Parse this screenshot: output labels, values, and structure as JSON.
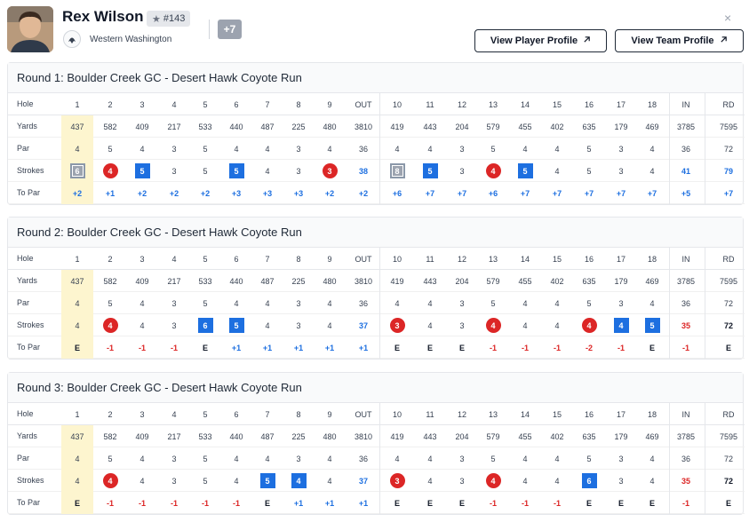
{
  "player": {
    "name": "Rex Wilson",
    "rank": "#143",
    "team": "Western Washington",
    "more": "+7"
  },
  "buttons": {
    "player_profile": "View Player Profile",
    "team_profile": "View Team Profile"
  },
  "close": "×",
  "row_labels": {
    "hole": "Hole",
    "yards": "Yards",
    "par": "Par",
    "strokes": "Strokes",
    "to_par": "To Par"
  },
  "columns": [
    "1",
    "2",
    "3",
    "4",
    "5",
    "6",
    "7",
    "8",
    "9",
    "OUT",
    "10",
    "11",
    "12",
    "13",
    "14",
    "15",
    "16",
    "17",
    "18",
    "IN",
    "RD"
  ],
  "rounds": [
    {
      "title": "Round 1: Boulder Creek GC - Desert Hawk Coyote Run",
      "yards": [
        "437",
        "582",
        "409",
        "217",
        "533",
        "440",
        "487",
        "225",
        "480",
        "3810",
        "419",
        "443",
        "204",
        "579",
        "455",
        "402",
        "635",
        "179",
        "469",
        "3785",
        "7595"
      ],
      "par": [
        "4",
        "5",
        "4",
        "3",
        "5",
        "4",
        "4",
        "3",
        "4",
        "36",
        "4",
        "4",
        "3",
        "5",
        "4",
        "4",
        "5",
        "3",
        "4",
        "36",
        "72"
      ],
      "strokes": [
        "6",
        "4",
        "5",
        "3",
        "5",
        "5",
        "4",
        "3",
        "3",
        "38",
        "8",
        "5",
        "3",
        "4",
        "5",
        "4",
        "5",
        "3",
        "4",
        "41",
        "79"
      ],
      "to_par": [
        "+2",
        "+1",
        "+2",
        "+2",
        "+2",
        "+3",
        "+3",
        "+3",
        "+2",
        "+2",
        "+6",
        "+7",
        "+7",
        "+6",
        "+7",
        "+7",
        "+7",
        "+7",
        "+7",
        "+5",
        "+7"
      ]
    },
    {
      "title": "Round 2: Boulder Creek GC - Desert Hawk Coyote Run",
      "yards": [
        "437",
        "582",
        "409",
        "217",
        "533",
        "440",
        "487",
        "225",
        "480",
        "3810",
        "419",
        "443",
        "204",
        "579",
        "455",
        "402",
        "635",
        "179",
        "469",
        "3785",
        "7595"
      ],
      "par": [
        "4",
        "5",
        "4",
        "3",
        "5",
        "4",
        "4",
        "3",
        "4",
        "36",
        "4",
        "4",
        "3",
        "5",
        "4",
        "4",
        "5",
        "3",
        "4",
        "36",
        "72"
      ],
      "strokes": [
        "4",
        "4",
        "4",
        "3",
        "6",
        "5",
        "4",
        "3",
        "4",
        "37",
        "3",
        "4",
        "3",
        "4",
        "4",
        "4",
        "4",
        "4",
        "5",
        "35",
        "72"
      ],
      "to_par": [
        "E",
        "-1",
        "-1",
        "-1",
        "E",
        "+1",
        "+1",
        "+1",
        "+1",
        "+1",
        "E",
        "E",
        "E",
        "-1",
        "-1",
        "-1",
        "-2",
        "-1",
        "E",
        "-1",
        "E"
      ]
    },
    {
      "title": "Round 3: Boulder Creek GC - Desert Hawk Coyote Run",
      "yards": [
        "437",
        "582",
        "409",
        "217",
        "533",
        "440",
        "487",
        "225",
        "480",
        "3810",
        "419",
        "443",
        "204",
        "579",
        "455",
        "402",
        "635",
        "179",
        "469",
        "3785",
        "7595"
      ],
      "par": [
        "4",
        "5",
        "4",
        "3",
        "5",
        "4",
        "4",
        "3",
        "4",
        "36",
        "4",
        "4",
        "3",
        "5",
        "4",
        "4",
        "5",
        "3",
        "4",
        "36",
        "72"
      ],
      "strokes": [
        "4",
        "4",
        "4",
        "3",
        "5",
        "4",
        "5",
        "4",
        "4",
        "37",
        "3",
        "4",
        "3",
        "4",
        "4",
        "4",
        "6",
        "3",
        "4",
        "35",
        "72"
      ],
      "to_par": [
        "E",
        "-1",
        "-1",
        "-1",
        "-1",
        "-1",
        "E",
        "+1",
        "+1",
        "+1",
        "E",
        "E",
        "E",
        "-1",
        "-1",
        "-1",
        "E",
        "E",
        "E",
        "-1",
        "E"
      ]
    }
  ],
  "colors": {
    "birdie": "#dc2626",
    "bogey": "#1d6fe0",
    "double_bogey": "#9ca3af",
    "hole1_highlight": "#fdf5cf"
  }
}
